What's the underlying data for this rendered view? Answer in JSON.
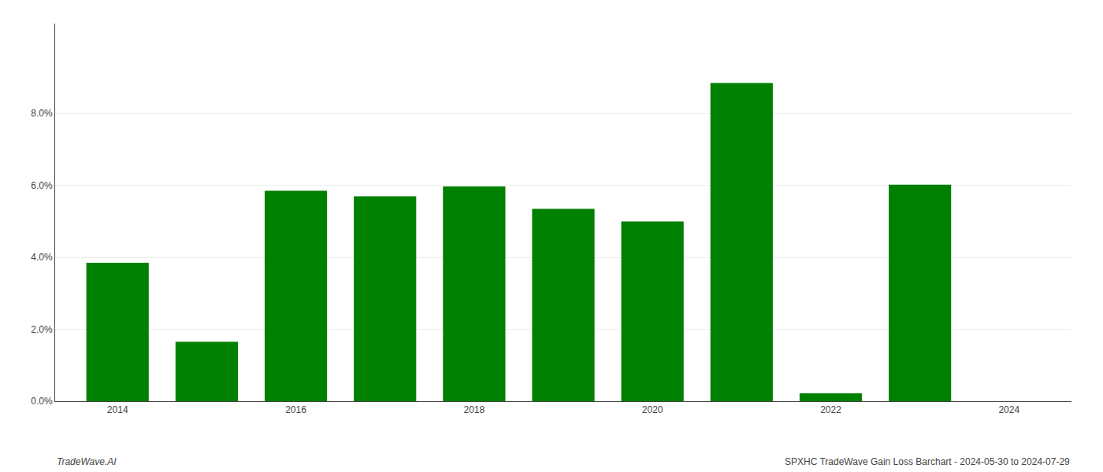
{
  "chart_data": {
    "type": "bar",
    "x": [
      2014,
      2015,
      2016,
      2017,
      2018,
      2019,
      2020,
      2021,
      2022,
      2023,
      2024
    ],
    "values": [
      3.85,
      1.65,
      5.85,
      5.7,
      5.97,
      5.35,
      5.0,
      8.85,
      0.22,
      6.02,
      0.0
    ],
    "color": "#008000",
    "xlim": [
      2013.3,
      2024.7
    ],
    "xticks": [
      2014,
      2016,
      2018,
      2020,
      2022,
      2024
    ],
    "ylim": [
      0,
      10.5
    ],
    "yticks": [
      {
        "value": 0.0,
        "label": "0.0%"
      },
      {
        "value": 2.0,
        "label": "2.0%"
      },
      {
        "value": 4.0,
        "label": "4.0%"
      },
      {
        "value": 6.0,
        "label": "6.0%"
      },
      {
        "value": 8.0,
        "label": "8.0%"
      }
    ],
    "grid": true,
    "annotations": [
      "TradeWave.AI",
      "SPXHC TradeWave Gain Loss Barchart - 2024-05-30 to 2024-07-29"
    ]
  }
}
